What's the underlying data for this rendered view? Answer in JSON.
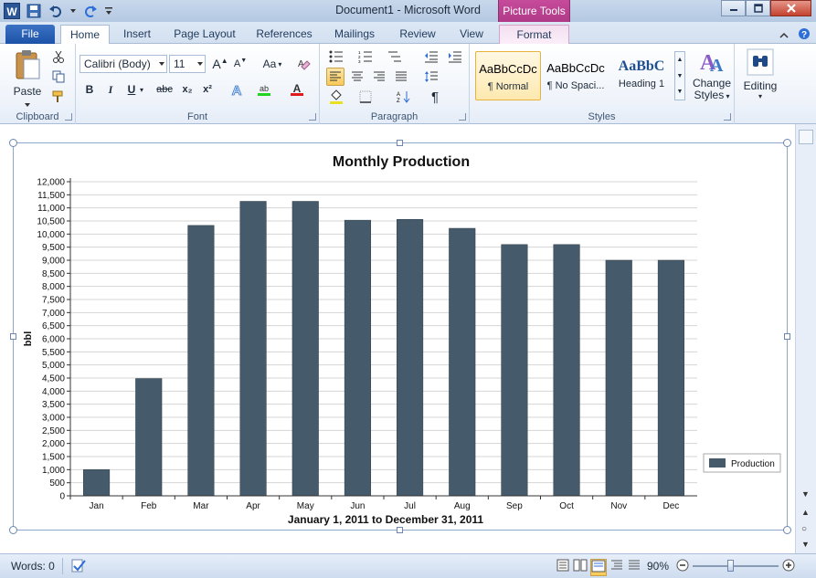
{
  "app": {
    "title": "Document1  -  Microsoft Word",
    "logo_letter": "W",
    "context_tab_group": "Picture Tools"
  },
  "tabs": [
    {
      "label": "File"
    },
    {
      "label": "Home"
    },
    {
      "label": "Insert"
    },
    {
      "label": "Page Layout"
    },
    {
      "label": "References"
    },
    {
      "label": "Mailings"
    },
    {
      "label": "Review"
    },
    {
      "label": "View"
    },
    {
      "label": "Format"
    }
  ],
  "ribbon": {
    "clipboard": {
      "paste_label": "Paste",
      "group_label": "Clipboard"
    },
    "font": {
      "font_name": "Calibri (Body)",
      "font_size": "11",
      "group_label": "Font",
      "bold": "B",
      "italic": "I",
      "underline": "U",
      "strike": "abc",
      "subscript": "x₂",
      "superscript": "x²",
      "change_case": "Aa"
    },
    "paragraph": {
      "group_label": "Paragraph",
      "pilcrow": "¶"
    },
    "styles": {
      "group_label": "Styles",
      "items": [
        {
          "sample": "AaBbCcDc",
          "name": "¶ Normal",
          "selected": true
        },
        {
          "sample": "AaBbCcDc",
          "name": "¶ No Spaci...",
          "selected": false
        },
        {
          "sample": "AaBbC",
          "name": "Heading 1",
          "selected": false
        }
      ],
      "change_styles_line1": "Change",
      "change_styles_line2": "Styles"
    },
    "editing": {
      "label": "Editing"
    }
  },
  "chart_data": {
    "type": "bar",
    "title": "Monthly Production",
    "xlabel": "January 1, 2011 to December 31, 2011",
    "ylabel": "bbl",
    "categories": [
      "Jan",
      "Feb",
      "Mar",
      "Apr",
      "May",
      "Jun",
      "Jul",
      "Aug",
      "Sep",
      "Oct",
      "Nov",
      "Dec"
    ],
    "series": [
      {
        "name": "Production",
        "values": [
          1000,
          4480,
          10330,
          11250,
          11250,
          10530,
          10560,
          10220,
          9600,
          9600,
          9000,
          9000
        ],
        "color": "#455a6a"
      }
    ],
    "ylim": [
      0,
      12000
    ],
    "yticks": [
      "0",
      "500",
      "1,000",
      "1,500",
      "2,000",
      "2,500",
      "3,000",
      "3,500",
      "4,000",
      "4,500",
      "5,000",
      "5,500",
      "6,000",
      "6,500",
      "7,000",
      "7,500",
      "8,000",
      "8,500",
      "9,000",
      "9,500",
      "10,000",
      "10,500",
      "11,000",
      "11,500",
      "12,000"
    ],
    "grid": true,
    "legend_position": "right-bottom"
  },
  "status": {
    "words": "Words: 0",
    "zoom": "90%"
  },
  "colors": {
    "accent": "#2b5797",
    "context_tab": "#b03a88",
    "bar": "#455a6a"
  }
}
